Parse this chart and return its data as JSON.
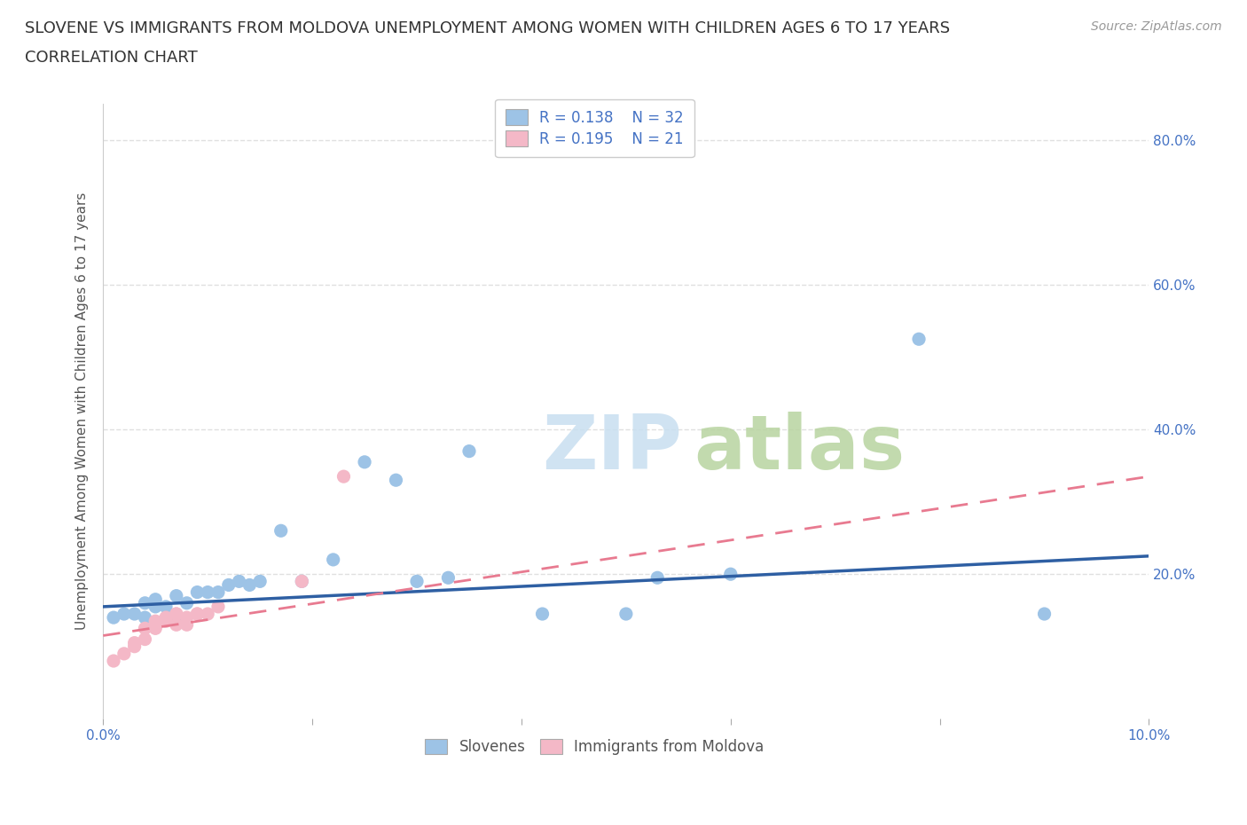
{
  "title_line1": "SLOVENE VS IMMIGRANTS FROM MOLDOVA UNEMPLOYMENT AMONG WOMEN WITH CHILDREN AGES 6 TO 17 YEARS",
  "title_line2": "CORRELATION CHART",
  "source_text": "Source: ZipAtlas.com",
  "ylabel": "Unemployment Among Women with Children Ages 6 to 17 years",
  "xlim": [
    0.0,
    0.1
  ],
  "ylim": [
    0.0,
    0.85
  ],
  "xtick_vals": [
    0.0,
    0.02,
    0.04,
    0.06,
    0.08,
    0.1
  ],
  "xtick_labels": [
    "0.0%",
    "",
    "",
    "",
    "",
    "10.0%"
  ],
  "ytick_vals": [
    0.0,
    0.2,
    0.4,
    0.6,
    0.8
  ],
  "ytick_labels": [
    "",
    "20.0%",
    "40.0%",
    "60.0%",
    "80.0%"
  ],
  "slovene_color": "#9dc3e6",
  "moldova_color": "#f4b8c7",
  "slovene_line_color": "#2e5fa3",
  "moldova_line_color": "#e87a90",
  "R_slovene": 0.138,
  "N_slovene": 32,
  "R_moldova": 0.195,
  "N_moldova": 21,
  "watermark_zip": "ZIP",
  "watermark_atlas": "atlas",
  "legend_label_slovene": "Slovenes",
  "legend_label_moldova": "Immigrants from Moldova",
  "slovene_x": [
    0.001,
    0.002,
    0.003,
    0.004,
    0.004,
    0.005,
    0.005,
    0.006,
    0.007,
    0.007,
    0.008,
    0.009,
    0.01,
    0.011,
    0.012,
    0.013,
    0.014,
    0.015,
    0.017,
    0.019,
    0.022,
    0.025,
    0.028,
    0.03,
    0.033,
    0.035,
    0.042,
    0.05,
    0.053,
    0.06,
    0.078,
    0.09
  ],
  "slovene_y": [
    0.14,
    0.145,
    0.145,
    0.14,
    0.16,
    0.155,
    0.165,
    0.155,
    0.17,
    0.14,
    0.16,
    0.175,
    0.175,
    0.175,
    0.185,
    0.19,
    0.185,
    0.19,
    0.26,
    0.19,
    0.22,
    0.355,
    0.33,
    0.19,
    0.195,
    0.37,
    0.145,
    0.145,
    0.195,
    0.2,
    0.525,
    0.145
  ],
  "moldova_x": [
    0.001,
    0.002,
    0.003,
    0.003,
    0.004,
    0.004,
    0.005,
    0.005,
    0.006,
    0.006,
    0.007,
    0.007,
    0.007,
    0.008,
    0.008,
    0.009,
    0.009,
    0.01,
    0.011,
    0.019,
    0.023
  ],
  "moldova_y": [
    0.08,
    0.09,
    0.1,
    0.105,
    0.11,
    0.125,
    0.125,
    0.135,
    0.135,
    0.14,
    0.145,
    0.13,
    0.145,
    0.14,
    0.13,
    0.145,
    0.145,
    0.145,
    0.155,
    0.19,
    0.335
  ],
  "slovene_trend_x0": 0.0,
  "slovene_trend_y0": 0.155,
  "slovene_trend_x1": 0.1,
  "slovene_trend_y1": 0.225,
  "moldova_trend_x0": 0.0,
  "moldova_trend_y0": 0.115,
  "moldova_trend_x1": 0.1,
  "moldova_trend_y1": 0.335,
  "background_color": "#ffffff",
  "grid_color": "#e0e0e0",
  "title_fontsize": 13,
  "axis_label_fontsize": 11,
  "tick_fontsize": 11,
  "legend_fontsize": 12
}
